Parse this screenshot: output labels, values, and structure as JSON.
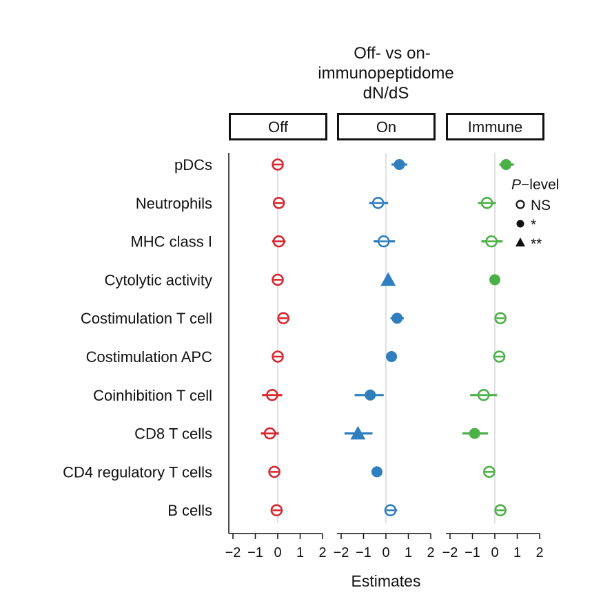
{
  "chart_data": {
    "type": "scatter",
    "subtype": "forest-plot-faceted",
    "title_lines": [
      "Off-  vs on-",
      "immunopeptidome",
      "dN/dS"
    ],
    "xlabel": "Estimates",
    "xlim": [
      -2.2,
      2.2
    ],
    "xticks": [
      -2,
      -1,
      0,
      1,
      2
    ],
    "xtick_labels": [
      "−2",
      "−1",
      "0",
      "1",
      "2"
    ],
    "categories": [
      "pDCs",
      "Neutrophils",
      "MHC class I",
      "Cytolytic activity",
      "Costimulation T cell",
      "Costimulation APC",
      "Coinhibition T cell",
      "CD8 T cells",
      "CD4 regulatory T cells",
      "B cells"
    ],
    "panels": [
      {
        "name": "Off",
        "color": "#d7262e",
        "points": [
          {
            "estimate": 0.0,
            "lo": -0.2,
            "hi": 0.2,
            "sig": "NS"
          },
          {
            "estimate": 0.05,
            "lo": -0.15,
            "hi": 0.25,
            "sig": "NS"
          },
          {
            "estimate": 0.05,
            "lo": -0.25,
            "hi": 0.35,
            "sig": "NS"
          },
          {
            "estimate": 0.0,
            "lo": -0.05,
            "hi": 0.05,
            "sig": "NS"
          },
          {
            "estimate": 0.25,
            "lo": 0.05,
            "hi": 0.45,
            "sig": "NS"
          },
          {
            "estimate": 0.0,
            "lo": -0.2,
            "hi": 0.2,
            "sig": "NS"
          },
          {
            "estimate": -0.25,
            "lo": -0.7,
            "hi": 0.2,
            "sig": "NS"
          },
          {
            "estimate": -0.35,
            "lo": -0.75,
            "hi": 0.05,
            "sig": "NS"
          },
          {
            "estimate": -0.15,
            "lo": -0.35,
            "hi": 0.05,
            "sig": "NS"
          },
          {
            "estimate": -0.05,
            "lo": -0.25,
            "hi": 0.15,
            "sig": "NS"
          }
        ]
      },
      {
        "name": "On",
        "color": "#2f7fbf",
        "points": [
          {
            "estimate": 0.6,
            "lo": 0.25,
            "hi": 0.95,
            "sig": "*"
          },
          {
            "estimate": -0.35,
            "lo": -0.75,
            "hi": 0.1,
            "sig": "NS"
          },
          {
            "estimate": -0.1,
            "lo": -0.55,
            "hi": 0.4,
            "sig": "NS"
          },
          {
            "estimate": 0.1,
            "lo": 0.1,
            "hi": 0.1,
            "sig": "**"
          },
          {
            "estimate": 0.5,
            "lo": 0.2,
            "hi": 0.8,
            "sig": "*"
          },
          {
            "estimate": 0.25,
            "lo": 0.25,
            "hi": 0.25,
            "sig": "*"
          },
          {
            "estimate": -0.7,
            "lo": -1.4,
            "hi": -0.1,
            "sig": "*"
          },
          {
            "estimate": -1.25,
            "lo": -1.85,
            "hi": -0.6,
            "sig": "**"
          },
          {
            "estimate": -0.4,
            "lo": -0.6,
            "hi": -0.2,
            "sig": "*"
          },
          {
            "estimate": 0.2,
            "lo": -0.05,
            "hi": 0.5,
            "sig": "NS"
          }
        ]
      },
      {
        "name": "Immune",
        "color": "#4bb047",
        "points": [
          {
            "estimate": 0.5,
            "lo": 0.2,
            "hi": 0.85,
            "sig": "*"
          },
          {
            "estimate": -0.35,
            "lo": -0.75,
            "hi": 0.05,
            "sig": "NS"
          },
          {
            "estimate": -0.15,
            "lo": -0.6,
            "hi": 0.35,
            "sig": "NS"
          },
          {
            "estimate": 0.0,
            "lo": 0.0,
            "hi": 0.0,
            "sig": "*"
          },
          {
            "estimate": 0.25,
            "lo": 0.0,
            "hi": 0.5,
            "sig": "NS"
          },
          {
            "estimate": 0.2,
            "lo": 0.0,
            "hi": 0.4,
            "sig": "NS"
          },
          {
            "estimate": -0.5,
            "lo": -1.1,
            "hi": 0.1,
            "sig": "NS"
          },
          {
            "estimate": -0.9,
            "lo": -1.45,
            "hi": -0.3,
            "sig": "*"
          },
          {
            "estimate": -0.25,
            "lo": -0.45,
            "hi": -0.05,
            "sig": "NS"
          },
          {
            "estimate": 0.25,
            "lo": 0.0,
            "hi": 0.5,
            "sig": "NS"
          }
        ]
      }
    ],
    "legend": {
      "title_italic": "P",
      "title_rest": "−level",
      "placement": "right",
      "items": [
        {
          "label": "NS",
          "marker": "open-circle"
        },
        {
          "label": "*",
          "marker": "filled-circle"
        },
        {
          "label": "**",
          "marker": "filled-triangle"
        }
      ]
    },
    "reference_line": 0
  }
}
